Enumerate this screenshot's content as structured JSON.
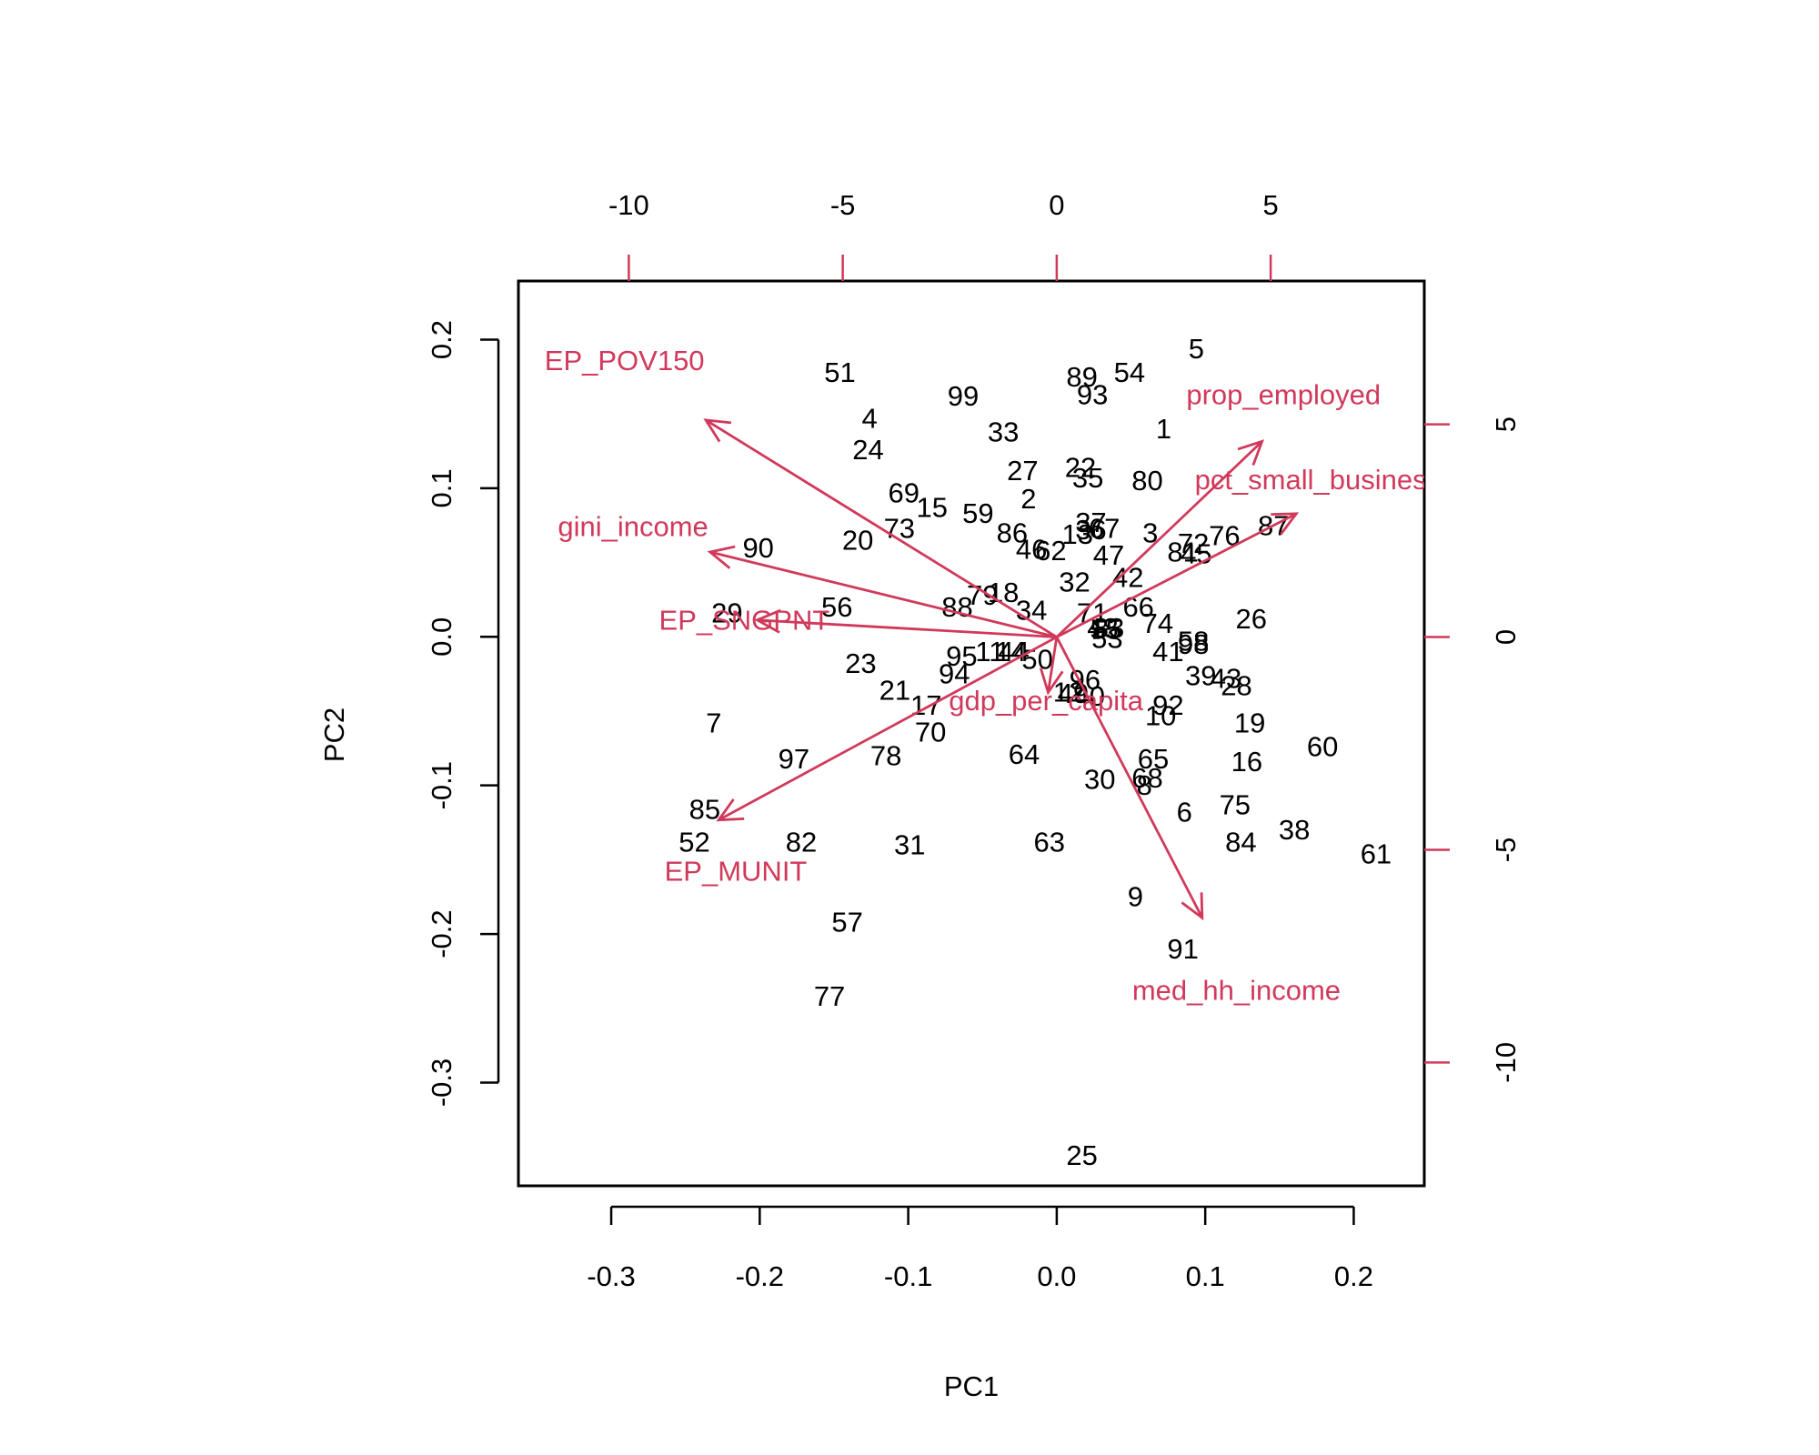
{
  "chart_data": {
    "type": "scatter",
    "subtype": "biplot",
    "xlabel": "PC1",
    "ylabel": "PC2",
    "xlim": [
      -0.3625,
      0.2475
    ],
    "ylim": [
      -0.3695,
      0.2395
    ],
    "xticks": [
      -0.3,
      -0.2,
      -0.1,
      0.0,
      0.1,
      0.2
    ],
    "xtick_labels": [
      "-0.3",
      "-0.2",
      "-0.1",
      "0.0",
      "0.1",
      "0.2"
    ],
    "yticks": [
      -0.3,
      -0.2,
      -0.1,
      0.0,
      0.1,
      0.2
    ],
    "ytick_labels": [
      "-0.3",
      "-0.2",
      "-0.1",
      "0.0",
      "0.1",
      "0.2"
    ],
    "top_axis": {
      "lim": [
        -12.58,
        8.59
      ],
      "ticks": [
        -10,
        -5,
        0,
        5
      ],
      "tick_labels": [
        "-10",
        "-5",
        "0",
        "5"
      ]
    },
    "right_axis": {
      "lim": [
        -12.9,
        8.37
      ],
      "ticks": [
        -10,
        -5,
        0,
        5
      ],
      "tick_labels": [
        "-10",
        "-5",
        "0",
        "5"
      ]
    },
    "colors": {
      "points": "#000000",
      "loadings": "#D1395B"
    },
    "points": [
      {
        "label": "1",
        "x": 0.072,
        "y": 0.14
      },
      {
        "label": "2",
        "x": -0.019,
        "y": 0.093
      },
      {
        "label": "3",
        "x": 0.063,
        "y": 0.07
      },
      {
        "label": "4",
        "x": -0.126,
        "y": 0.147
      },
      {
        "label": "5",
        "x": 0.094,
        "y": 0.194
      },
      {
        "label": "6",
        "x": 0.086,
        "y": -0.118
      },
      {
        "label": "7",
        "x": -0.231,
        "y": -0.058
      },
      {
        "label": "8",
        "x": 0.059,
        "y": -0.1
      },
      {
        "label": "9",
        "x": 0.053,
        "y": -0.175
      },
      {
        "label": "10",
        "x": 0.07,
        "y": -0.053
      },
      {
        "label": "11",
        "x": -0.045,
        "y": -0.01
      },
      {
        "label": "12",
        "x": 0.008,
        "y": -0.037
      },
      {
        "label": "13",
        "x": 0.014,
        "y": 0.069
      },
      {
        "label": "14",
        "x": -0.031,
        "y": -0.01
      },
      {
        "label": "15",
        "x": -0.084,
        "y": 0.087
      },
      {
        "label": "16",
        "x": 0.128,
        "y": -0.084
      },
      {
        "label": "17",
        "x": -0.088,
        "y": -0.046
      },
      {
        "label": "18",
        "x": -0.036,
        "y": 0.03
      },
      {
        "label": "19",
        "x": 0.13,
        "y": -0.058
      },
      {
        "label": "20",
        "x": -0.134,
        "y": 0.065
      },
      {
        "label": "21",
        "x": -0.109,
        "y": -0.036
      },
      {
        "label": "22",
        "x": 0.016,
        "y": 0.114
      },
      {
        "label": "23",
        "x": -0.132,
        "y": -0.018
      },
      {
        "label": "24",
        "x": -0.127,
        "y": 0.126
      },
      {
        "label": "25",
        "x": 0.017,
        "y": -0.349
      },
      {
        "label": "26",
        "x": 0.131,
        "y": 0.012
      },
      {
        "label": "27",
        "x": -0.023,
        "y": 0.112
      },
      {
        "label": "28",
        "x": 0.121,
        "y": -0.033
      },
      {
        "label": "29",
        "x": -0.222,
        "y": 0.016
      },
      {
        "label": "30",
        "x": 0.029,
        "y": -0.096
      },
      {
        "label": "31",
        "x": -0.099,
        "y": -0.14
      },
      {
        "label": "32",
        "x": 0.012,
        "y": 0.037
      },
      {
        "label": "33",
        "x": -0.036,
        "y": 0.138
      },
      {
        "label": "34",
        "x": -0.017,
        "y": 0.018
      },
      {
        "label": "35",
        "x": 0.021,
        "y": 0.107
      },
      {
        "label": "36",
        "x": 0.023,
        "y": 0.072
      },
      {
        "label": "37",
        "x": 0.023,
        "y": 0.077
      },
      {
        "label": "38",
        "x": 0.16,
        "y": -0.13
      },
      {
        "label": "39",
        "x": 0.097,
        "y": -0.026
      },
      {
        "label": "40",
        "x": 0.022,
        "y": -0.04
      },
      {
        "label": "41",
        "x": 0.075,
        "y": -0.01
      },
      {
        "label": "42",
        "x": 0.048,
        "y": 0.04
      },
      {
        "label": "43",
        "x": 0.114,
        "y": -0.028
      },
      {
        "label": "44",
        "x": -0.029,
        "y": -0.01
      },
      {
        "label": "45",
        "x": 0.094,
        "y": 0.056
      },
      {
        "label": "46",
        "x": -0.017,
        "y": 0.059
      },
      {
        "label": "47",
        "x": 0.035,
        "y": 0.055
      },
      {
        "label": "48",
        "x": 0.031,
        "y": 0.006
      },
      {
        "label": "49",
        "x": 0.011,
        "y": -0.038
      },
      {
        "label": "50",
        "x": -0.013,
        "y": -0.015
      },
      {
        "label": "51",
        "x": -0.146,
        "y": 0.178
      },
      {
        "label": "52",
        "x": -0.244,
        "y": -0.138
      },
      {
        "label": "53",
        "x": 0.034,
        "y": -0.001
      },
      {
        "label": "54",
        "x": 0.049,
        "y": 0.178
      },
      {
        "label": "55",
        "x": 0.033,
        "y": 0.005
      },
      {
        "label": "56",
        "x": -0.148,
        "y": 0.02
      },
      {
        "label": "57",
        "x": -0.141,
        "y": -0.192
      },
      {
        "label": "58",
        "x": 0.092,
        "y": -0.003
      },
      {
        "label": "59",
        "x": -0.053,
        "y": 0.083
      },
      {
        "label": "60",
        "x": 0.179,
        "y": -0.074
      },
      {
        "label": "61",
        "x": 0.215,
        "y": -0.146
      },
      {
        "label": "62",
        "x": -0.004,
        "y": 0.058
      },
      {
        "label": "63",
        "x": -0.005,
        "y": -0.138
      },
      {
        "label": "64",
        "x": -0.022,
        "y": -0.079
      },
      {
        "label": "65",
        "x": 0.065,
        "y": -0.082
      },
      {
        "label": "66",
        "x": 0.055,
        "y": 0.02
      },
      {
        "label": "67",
        "x": 0.032,
        "y": 0.073
      },
      {
        "label": "68",
        "x": 0.061,
        "y": -0.095
      },
      {
        "label": "69",
        "x": -0.103,
        "y": 0.097
      },
      {
        "label": "70",
        "x": -0.085,
        "y": -0.064
      },
      {
        "label": "71",
        "x": 0.024,
        "y": 0.016
      },
      {
        "label": "72",
        "x": 0.092,
        "y": 0.063
      },
      {
        "label": "73",
        "x": -0.106,
        "y": 0.073
      },
      {
        "label": "74",
        "x": 0.068,
        "y": 0.009
      },
      {
        "label": "75",
        "x": 0.12,
        "y": -0.113
      },
      {
        "label": "76",
        "x": 0.113,
        "y": 0.068
      },
      {
        "label": "77",
        "x": -0.153,
        "y": -0.242
      },
      {
        "label": "78",
        "x": -0.115,
        "y": -0.08
      },
      {
        "label": "79",
        "x": -0.05,
        "y": 0.028
      },
      {
        "label": "80",
        "x": 0.061,
        "y": 0.105
      },
      {
        "label": "81",
        "x": 0.085,
        "y": 0.057
      },
      {
        "label": "82",
        "x": -0.172,
        "y": -0.138
      },
      {
        "label": "83",
        "x": 0.035,
        "y": 0.006
      },
      {
        "label": "84",
        "x": 0.124,
        "y": -0.138
      },
      {
        "label": "85",
        "x": -0.237,
        "y": -0.116
      },
      {
        "label": "86",
        "x": -0.03,
        "y": 0.07
      },
      {
        "label": "87",
        "x": 0.146,
        "y": 0.075
      },
      {
        "label": "88",
        "x": -0.067,
        "y": 0.02
      },
      {
        "label": "89",
        "x": 0.017,
        "y": 0.175
      },
      {
        "label": "90",
        "x": -0.201,
        "y": 0.06
      },
      {
        "label": "91",
        "x": 0.085,
        "y": -0.21
      },
      {
        "label": "92",
        "x": 0.075,
        "y": -0.046
      },
      {
        "label": "93",
        "x": 0.024,
        "y": 0.163
      },
      {
        "label": "94",
        "x": -0.069,
        "y": -0.025
      },
      {
        "label": "95",
        "x": -0.064,
        "y": -0.013
      },
      {
        "label": "96",
        "x": 0.019,
        "y": -0.029
      },
      {
        "label": "97",
        "x": -0.177,
        "y": -0.082
      },
      {
        "label": "98",
        "x": 0.092,
        "y": -0.005
      },
      {
        "label": "99",
        "x": -0.063,
        "y": 0.162
      }
    ],
    "loadings": [
      {
        "name": "EP_POV150",
        "x": -8.2,
        "y": 5.1
      },
      {
        "name": "prop_employed",
        "x": 4.8,
        "y": 4.6
      },
      {
        "name": "pct_small_business",
        "x": 5.6,
        "y": 2.9
      },
      {
        "name": "gini_income",
        "x": -8.1,
        "y": 2.0
      },
      {
        "name": "EP_SNGPNT",
        "x": -7.0,
        "y": 0.4
      },
      {
        "name": "gdp_per_capita",
        "x": -0.2,
        "y": -1.3
      },
      {
        "name": "EP_MUNIT",
        "x": -7.9,
        "y": -4.3
      },
      {
        "name": "med_hh_income",
        "x": 3.4,
        "y": -6.6
      }
    ],
    "loading_labels": [
      {
        "name": "EP_POV150",
        "x": -10.1,
        "y": 6.5
      },
      {
        "name": "prop_employed",
        "x": 5.3,
        "y": 5.7
      },
      {
        "name": "pct_small_business",
        "x": 6.1,
        "y": 3.7
      },
      {
        "name": "gini_income",
        "x": -9.9,
        "y": 2.6
      },
      {
        "name": "EP_SNGPNT",
        "x": -7.3,
        "y": 0.4
      },
      {
        "name": "gdp_per_capita",
        "x": -0.25,
        "y": -1.5
      },
      {
        "name": "EP_MUNIT",
        "x": -7.5,
        "y": -5.5
      },
      {
        "name": "med_hh_income",
        "x": 4.2,
        "y": -8.3
      }
    ]
  }
}
